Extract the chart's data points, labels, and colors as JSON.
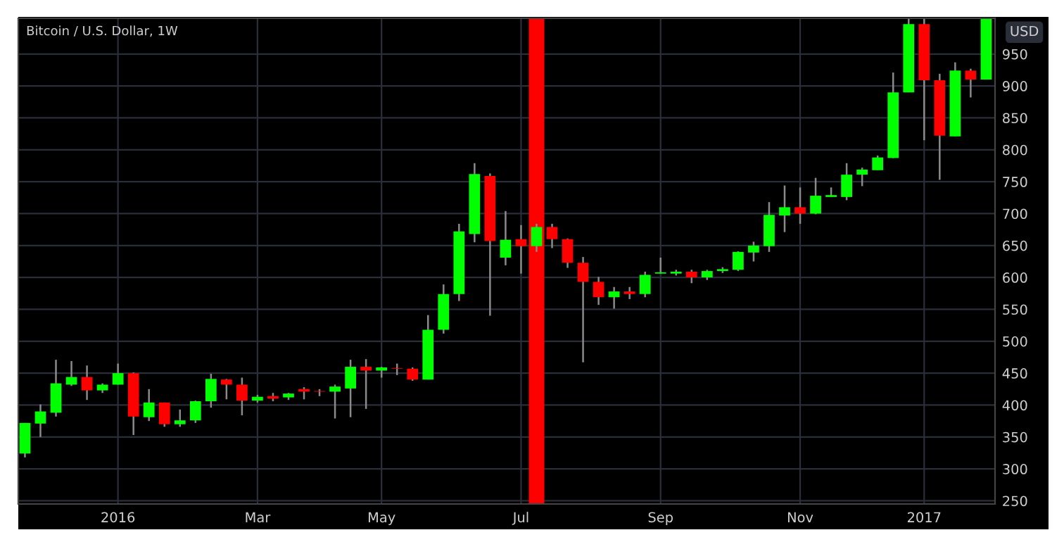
{
  "chart_data": {
    "type": "candlestick",
    "title": "Bitcoin / U.S. Dollar, 1W",
    "ylabel": "USD",
    "x": [
      "2015-11-23",
      "2015-11-30",
      "2015-12-07",
      "2015-12-14",
      "2015-12-21",
      "2015-12-28",
      "2016-01-04",
      "2016-01-11",
      "2016-01-18",
      "2016-01-25",
      "2016-02-01",
      "2016-02-08",
      "2016-02-15",
      "2016-02-22",
      "2016-02-29",
      "2016-03-07",
      "2016-03-14",
      "2016-03-21",
      "2016-03-28",
      "2016-04-04",
      "2016-04-11",
      "2016-04-18",
      "2016-04-25",
      "2016-05-02",
      "2016-05-09",
      "2016-05-16",
      "2016-05-23",
      "2016-05-30",
      "2016-06-06",
      "2016-06-13",
      "2016-06-20",
      "2016-06-27",
      "2016-07-04",
      "2016-07-11",
      "2016-07-18",
      "2016-07-25",
      "2016-08-01",
      "2016-08-08",
      "2016-08-15",
      "2016-08-22",
      "2016-08-29",
      "2016-09-05",
      "2016-09-12",
      "2016-09-19",
      "2016-09-26",
      "2016-10-03",
      "2016-10-10",
      "2016-10-17",
      "2016-10-24",
      "2016-10-31",
      "2016-11-07",
      "2016-11-14",
      "2016-11-21",
      "2016-11-28",
      "2016-12-05",
      "2016-12-12",
      "2016-12-19",
      "2016-12-26",
      "2017-01-02",
      "2017-01-09",
      "2017-01-16",
      "2017-01-23",
      "2017-01-30"
    ],
    "ohlc": [
      [
        324,
        372,
        318,
        372
      ],
      [
        371,
        401,
        350,
        390
      ],
      [
        388,
        471,
        382,
        434
      ],
      [
        432,
        469,
        430,
        444
      ],
      [
        444,
        462,
        408,
        423
      ],
      [
        423,
        434,
        419,
        432
      ],
      [
        432,
        465,
        432,
        450
      ],
      [
        450,
        451,
        353,
        382
      ],
      [
        381,
        425,
        375,
        404
      ],
      [
        404,
        404,
        366,
        370
      ],
      [
        370,
        393,
        366,
        376
      ],
      [
        376,
        407,
        372,
        406
      ],
      [
        406,
        449,
        396,
        441
      ],
      [
        440,
        441,
        409,
        432
      ],
      [
        432,
        443,
        384,
        407
      ],
      [
        407,
        416,
        404,
        413
      ],
      [
        414,
        419,
        406,
        410
      ],
      [
        412,
        419,
        408,
        418
      ],
      [
        425,
        428,
        409,
        421
      ],
      [
        422,
        425,
        414,
        421
      ],
      [
        421,
        432,
        379,
        429
      ],
      [
        426,
        471,
        381,
        460
      ],
      [
        460,
        472,
        394,
        454
      ],
      [
        454,
        460,
        443,
        459
      ],
      [
        458,
        465,
        447,
        457
      ],
      [
        457,
        459,
        438,
        440
      ],
      [
        440,
        541,
        440,
        518
      ],
      [
        518,
        589,
        512,
        574
      ],
      [
        574,
        684,
        563,
        672
      ],
      [
        668,
        779,
        655,
        762
      ],
      [
        759,
        763,
        540,
        657
      ],
      [
        631,
        704,
        619,
        659
      ],
      [
        660,
        682,
        606,
        649
      ],
      [
        649,
        684,
        640,
        679
      ],
      [
        679,
        684,
        646,
        660
      ],
      [
        660,
        661,
        615,
        623
      ],
      [
        623,
        632,
        467,
        593
      ],
      [
        593,
        601,
        557,
        569
      ],
      [
        569,
        585,
        551,
        578
      ],
      [
        578,
        585,
        566,
        574
      ],
      [
        574,
        609,
        569,
        604
      ],
      [
        606,
        631,
        606,
        608
      ],
      [
        606,
        612,
        603,
        609
      ],
      [
        609,
        612,
        591,
        600
      ],
      [
        600,
        612,
        596,
        610
      ],
      [
        610,
        616,
        607,
        613
      ],
      [
        612,
        641,
        610,
        640
      ],
      [
        639,
        656,
        625,
        650
      ],
      [
        649,
        718,
        640,
        698
      ],
      [
        697,
        744,
        671,
        710
      ],
      [
        710,
        741,
        684,
        700
      ],
      [
        700,
        756,
        699,
        728
      ],
      [
        726,
        741,
        726,
        729
      ],
      [
        726,
        779,
        721,
        761
      ],
      [
        761,
        772,
        743,
        769
      ],
      [
        768,
        791,
        768,
        788
      ],
      [
        787,
        921,
        787,
        890
      ],
      [
        890,
        1005,
        890,
        997
      ],
      [
        997,
        1005,
        815,
        909
      ],
      [
        909,
        919,
        753,
        822
      ],
      [
        821,
        937,
        821,
        924
      ],
      [
        924,
        927,
        882,
        910
      ],
      [
        910,
        1005,
        910,
        1005
      ]
    ],
    "colors": [
      "#00ff00",
      "#00ff00",
      "#00ff00",
      "#00ff00",
      "#ff0000",
      "#00ff00",
      "#00ff00",
      "#ff0000",
      "#00ff00",
      "#ff0000",
      "#00ff00",
      "#00ff00",
      "#00ff00",
      "#ff0000",
      "#ff0000",
      "#00ff00",
      "#ff0000",
      "#00ff00",
      "#ff0000",
      "#ff0000",
      "#00ff00",
      "#00ff00",
      "#ff0000",
      "#00ff00",
      "#ff0000",
      "#ff0000",
      "#00ff00",
      "#00ff00",
      "#00ff00",
      "#00ff00",
      "#ff0000",
      "#00ff00",
      "#ff0000",
      "#00ff00",
      "#ff0000",
      "#ff0000",
      "#ff0000",
      "#ff0000",
      "#00ff00",
      "#ff0000",
      "#00ff00",
      "#00ff00",
      "#00ff00",
      "#ff0000",
      "#00ff00",
      "#00ff00",
      "#00ff00",
      "#00ff00",
      "#00ff00",
      "#00ff00",
      "#ff0000",
      "#00ff00",
      "#00ff00",
      "#00ff00",
      "#00ff00",
      "#00ff00",
      "#00ff00",
      "#00ff00",
      "#ff0000",
      "#ff0000",
      "#00ff00",
      "#ff0000",
      "#00ff00"
    ],
    "xlim": [
      "2015-11-20",
      "2017-02-03"
    ],
    "xticks": [
      {
        "value": "2016-01-04",
        "label": "2016"
      },
      {
        "value": "2016-03-07",
        "label": "Mar"
      },
      {
        "value": "2016-05-02",
        "label": "May"
      },
      {
        "value": "2016-07-04",
        "label": "Jul"
      },
      {
        "value": "2016-09-05",
        "label": "Sep"
      },
      {
        "value": "2016-11-07",
        "label": "Nov"
      },
      {
        "value": "2017-01-02",
        "label": "2017"
      }
    ],
    "ylim": [
      245,
      1006
    ],
    "yticks": [
      250,
      300,
      350,
      400,
      450,
      500,
      550,
      600,
      650,
      700,
      750,
      800,
      850,
      900,
      950
    ],
    "bands": [
      {
        "axis": "x",
        "from": "2016-07-07T12:00",
        "to": "2016-07-14T12:00",
        "color": "#ff0000"
      }
    ],
    "grid": true
  }
}
